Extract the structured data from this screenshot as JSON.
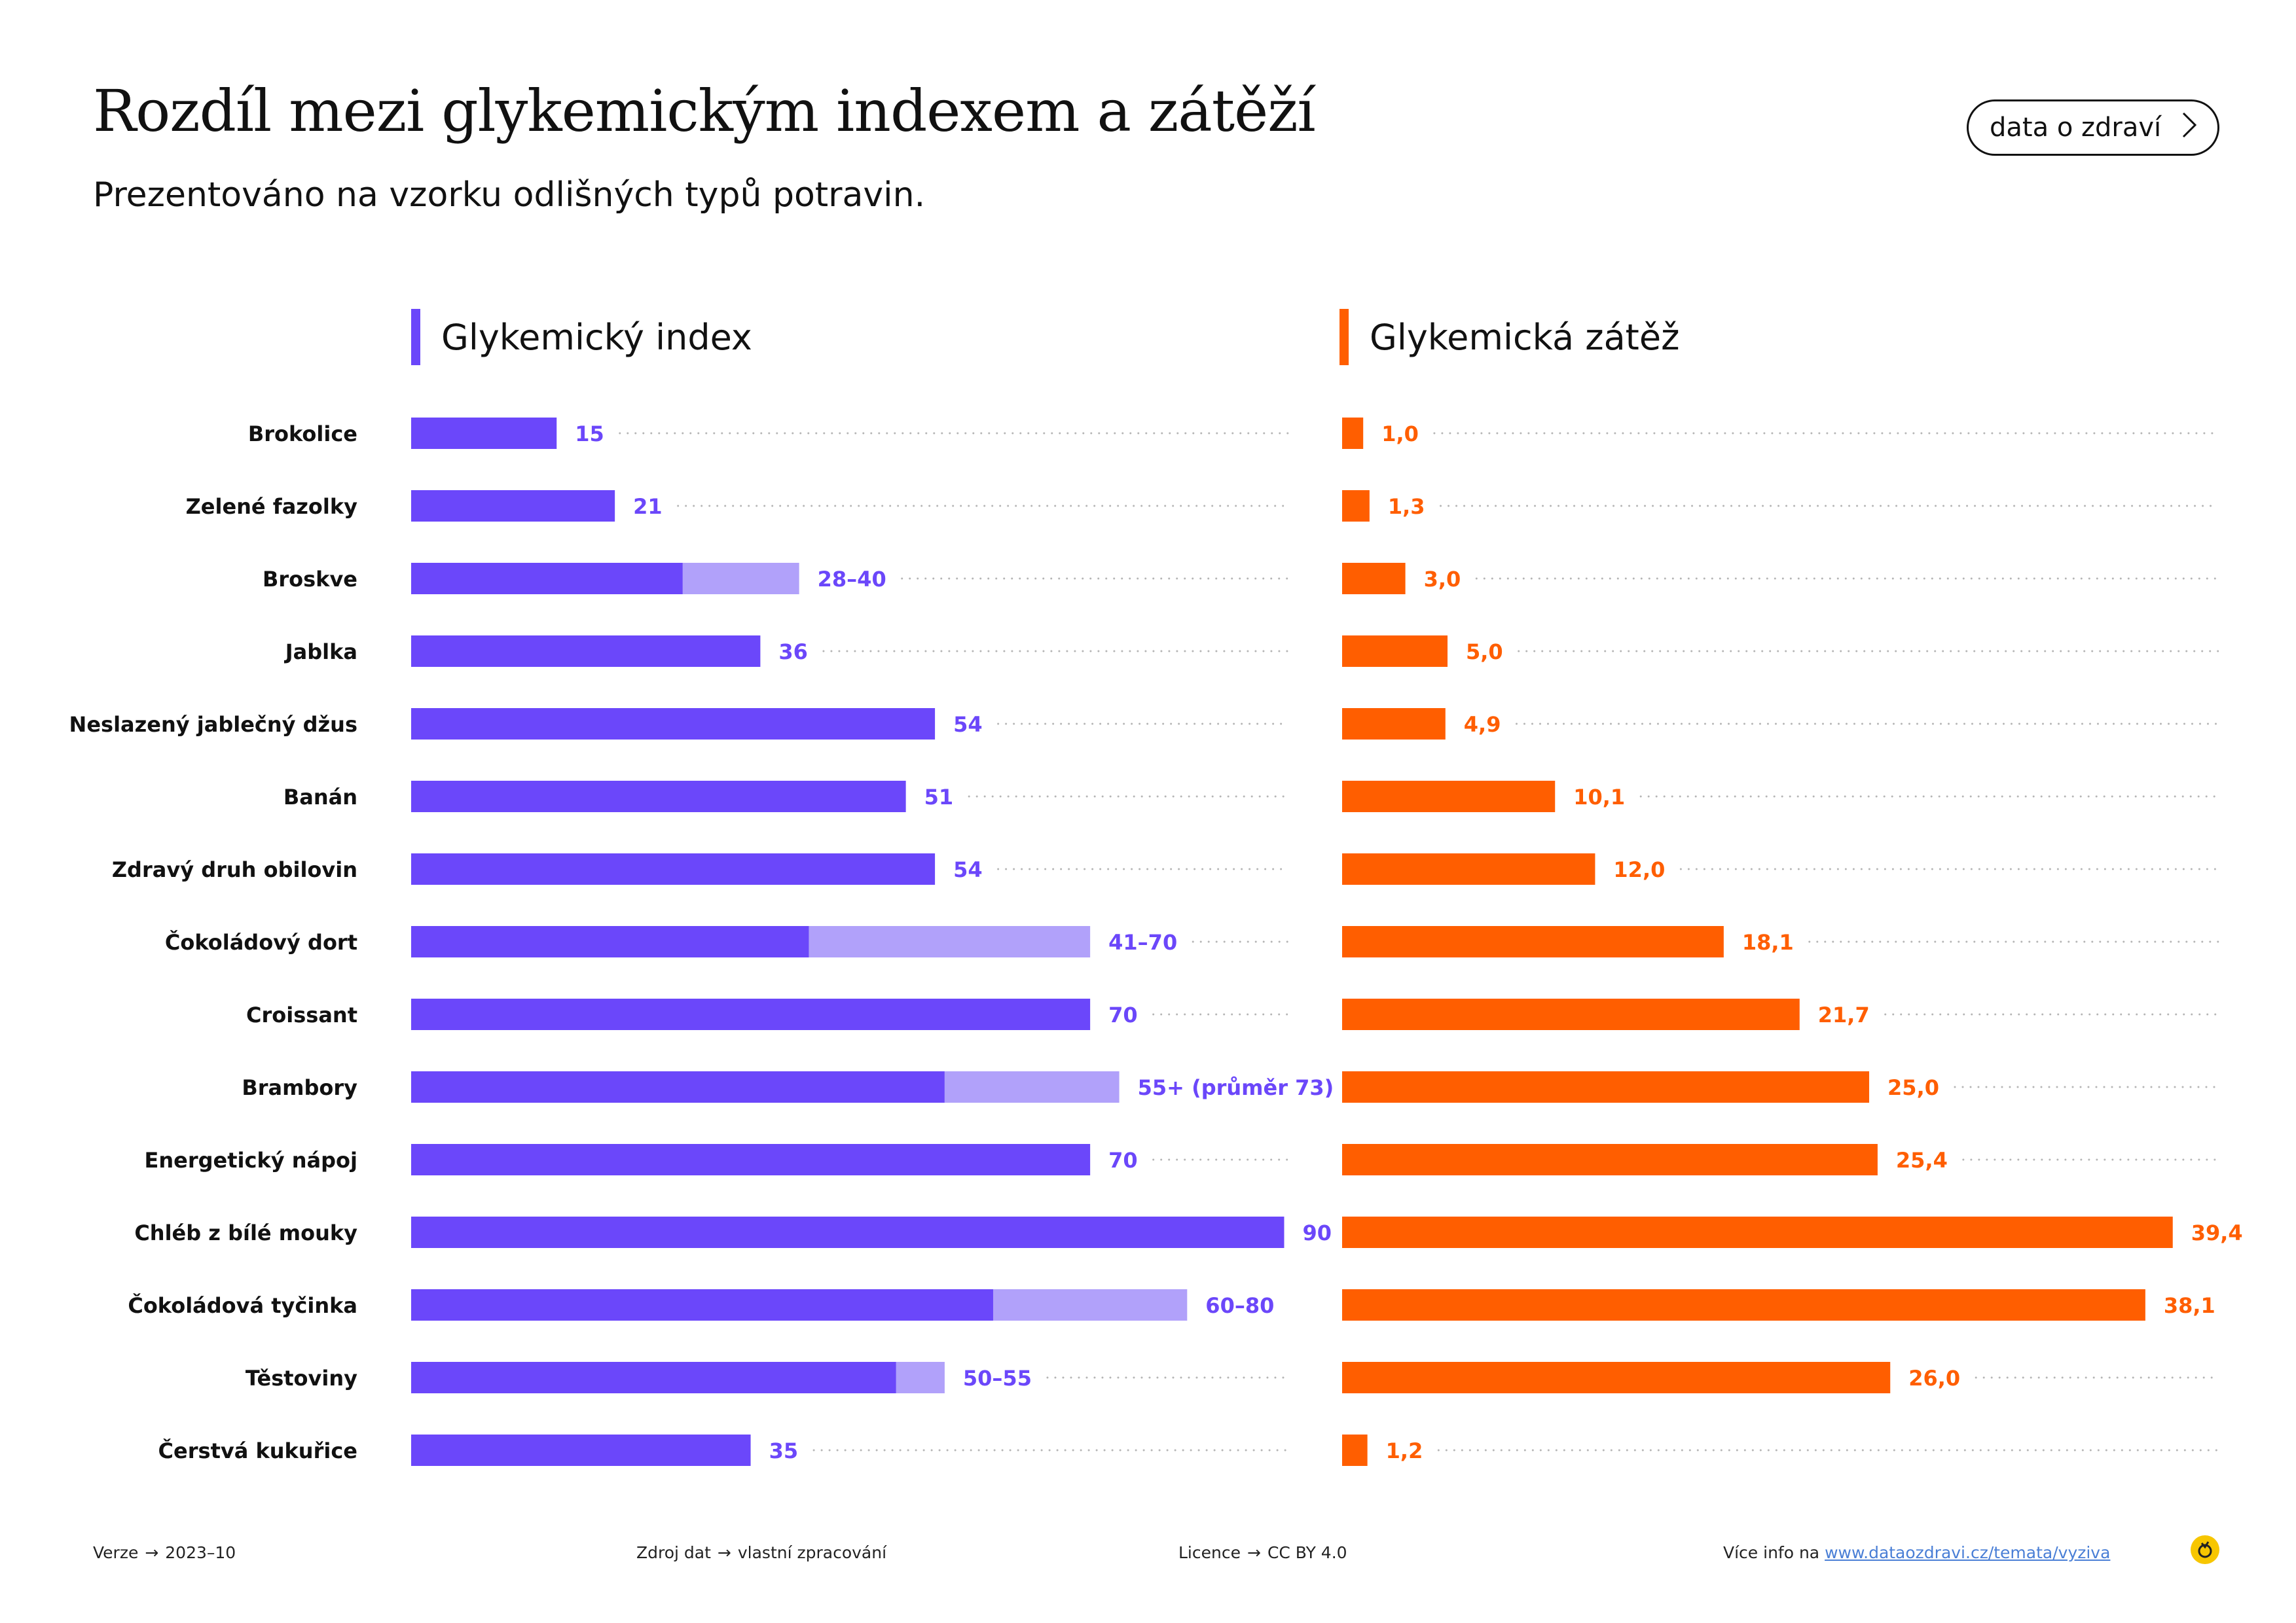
{
  "header": {
    "title": "Rozdíl mezi glykemickým indexem a zátěží",
    "subtitle": "Prezentováno na vzorku odlišných typů potravin.",
    "brand_button": "data o zdraví"
  },
  "colors": {
    "gi_primary": "#6b47fa",
    "gi_range": "#b1a1fa",
    "gl_primary": "#ff5e00",
    "dots": "#b5b5b5",
    "text": "#111111"
  },
  "chart_data": {
    "type": "bar",
    "categories": [
      "Brokolice",
      "Zelené fazolky",
      "Broskve",
      "Jablka",
      "Neslazený jablečný džus",
      "Banán",
      "Zdravý druh obilovin",
      "Čokoládový dort",
      "Croissant",
      "Brambory",
      "Energetický nápoj",
      "Chléb z bílé mouky",
      "Čokoládová tyčinka",
      "Těstoviny",
      "Čerstvá kukuřice"
    ],
    "series": [
      {
        "name": "Glykemický index",
        "low": [
          15,
          21,
          28,
          36,
          54,
          51,
          54,
          41,
          70,
          55,
          70,
          90,
          60,
          50,
          35
        ],
        "high": [
          15,
          21,
          40,
          36,
          54,
          51,
          54,
          70,
          70,
          73,
          70,
          90,
          80,
          55,
          35
        ],
        "labels": [
          "15",
          "21",
          "28–40",
          "36",
          "54",
          "51",
          "54",
          "41–70",
          "70",
          "55+ (průměr 73)",
          "70",
          "90",
          "60–80",
          "50–55",
          "35"
        ]
      },
      {
        "name": "Glykemická zátěž",
        "values": [
          1.0,
          1.3,
          3.0,
          5.0,
          4.9,
          10.1,
          12.0,
          18.1,
          21.7,
          25.0,
          25.4,
          39.4,
          38.1,
          26.0,
          1.2
        ],
        "labels": [
          "1,0",
          "1,3",
          "3,0",
          "5,0",
          "4,9",
          "10,1",
          "12,0",
          "18,1",
          "21,7",
          "25,0",
          "25,4",
          "39,4",
          "38,1",
          "26,0",
          "1,2"
        ]
      }
    ],
    "xlim_gi": [
      0,
      98
    ],
    "xlim_gl": [
      0,
      42.7
    ],
    "grid": false,
    "legend": "top"
  },
  "footer": {
    "version_label": "Verze",
    "version_value": "2023–10",
    "source_label": "Zdroj dat",
    "source_value": "vlastní zpracování",
    "license_label": "Licence",
    "license_value": "CC BY 4.0",
    "more_info": "Více info na",
    "link": "www.dataozdravi.cz/temata/vyziva"
  }
}
